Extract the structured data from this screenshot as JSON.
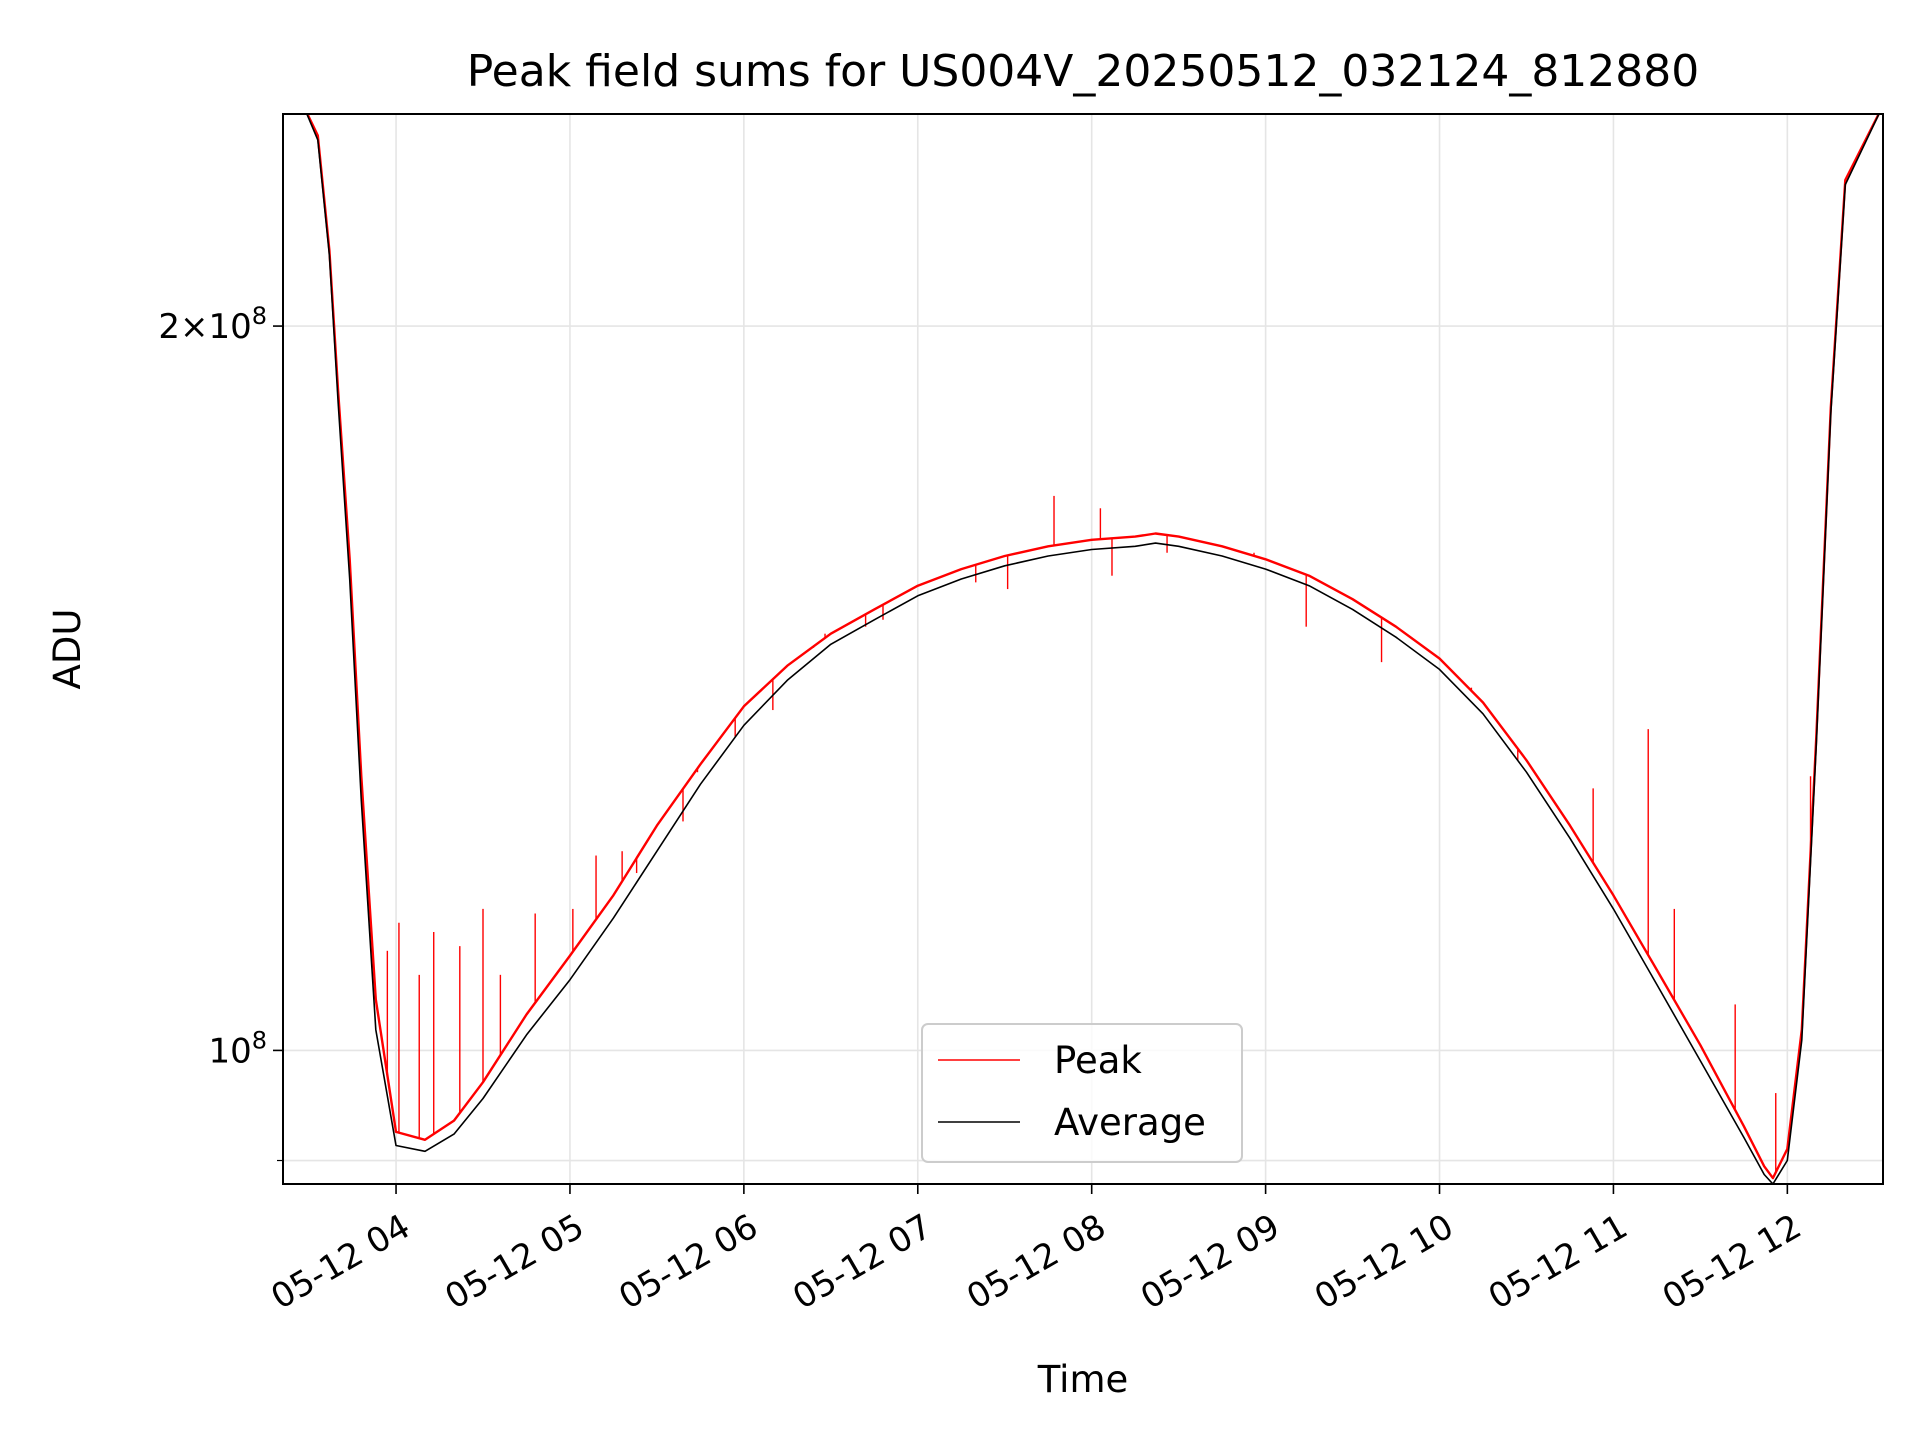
{
  "chart_data": {
    "type": "line",
    "title": "Peak field sums for US004V_20250512_032124_812880",
    "xlabel": "Time",
    "ylabel": "ADU",
    "y_scale": "log",
    "ylim": [
      88000000,
      245000000
    ],
    "xlim": [
      "2025-05-12 03:21",
      "2025-05-12 12:33"
    ],
    "grid": true,
    "legend_position": "lower center",
    "x_ticks": [
      {
        "value": "2025-05-12 04:00",
        "label": "05-12 04"
      },
      {
        "value": "2025-05-12 05:00",
        "label": "05-12 05"
      },
      {
        "value": "2025-05-12 06:00",
        "label": "05-12 06"
      },
      {
        "value": "2025-05-12 07:00",
        "label": "05-12 07"
      },
      {
        "value": "2025-05-12 08:00",
        "label": "05-12 08"
      },
      {
        "value": "2025-05-12 09:00",
        "label": "05-12 09"
      },
      {
        "value": "2025-05-12 10:00",
        "label": "05-12 10"
      },
      {
        "value": "2025-05-12 11:00",
        "label": "05-12 11"
      },
      {
        "value": "2025-05-12 12:00",
        "label": "05-12 12"
      }
    ],
    "y_ticks": [
      {
        "value": 200000000,
        "base": "2×10",
        "exp": "8"
      },
      {
        "value": 100000000,
        "base": "10",
        "exp": "8"
      }
    ],
    "y_minor_ticks": [
      90000000
    ],
    "series": [
      {
        "name": "Peak",
        "color": "#ff0000",
        "x": [
          "2025-05-12 03:21",
          "2025-05-12 03:28",
          "2025-05-12 03:33",
          "2025-05-12 03:37",
          "2025-05-12 03:40",
          "2025-05-12 03:44",
          "2025-05-12 03:48",
          "2025-05-12 03:53",
          "2025-05-12 04:00",
          "2025-05-12 04:10",
          "2025-05-12 04:20",
          "2025-05-12 04:30",
          "2025-05-12 04:45",
          "2025-05-12 05:00",
          "2025-05-12 05:15",
          "2025-05-12 05:30",
          "2025-05-12 05:45",
          "2025-05-12 06:00",
          "2025-05-12 06:15",
          "2025-05-12 06:30",
          "2025-05-12 06:45",
          "2025-05-12 07:00",
          "2025-05-12 07:15",
          "2025-05-12 07:30",
          "2025-05-12 07:45",
          "2025-05-12 08:00",
          "2025-05-12 08:15",
          "2025-05-12 08:22",
          "2025-05-12 08:30",
          "2025-05-12 08:45",
          "2025-05-12 09:00",
          "2025-05-12 09:15",
          "2025-05-12 09:30",
          "2025-05-12 09:45",
          "2025-05-12 10:00",
          "2025-05-12 10:15",
          "2025-05-12 10:30",
          "2025-05-12 10:45",
          "2025-05-12 11:00",
          "2025-05-12 11:15",
          "2025-05-12 11:30",
          "2025-05-12 11:45",
          "2025-05-12 11:52",
          "2025-05-12 11:55",
          "2025-05-12 12:00",
          "2025-05-12 12:05",
          "2025-05-12 12:10",
          "2025-05-12 12:15",
          "2025-05-12 12:20",
          "2025-05-12 12:33"
        ],
        "values": [
          247000000,
          247000000,
          240000000,
          215000000,
          188000000,
          160000000,
          130000000,
          105000000,
          92500000,
          91800000,
          93500000,
          97000000,
          103500000,
          109500000,
          116000000,
          124000000,
          131500000,
          139000000,
          144500000,
          149000000,
          152500000,
          156000000,
          158500000,
          160500000,
          162000000,
          163000000,
          163500000,
          164000000,
          163500000,
          162000000,
          160000000,
          157500000,
          154000000,
          150000000,
          145500000,
          139500000,
          132000000,
          124000000,
          116000000,
          108000000,
          100500000,
          93000000,
          89500000,
          88500000,
          91000000,
          102000000,
          135000000,
          185000000,
          230000000,
          247000000
        ]
      },
      {
        "name": "Average",
        "color": "#000000",
        "x": [
          "2025-05-12 03:21",
          "2025-05-12 03:28",
          "2025-05-12 03:33",
          "2025-05-12 03:37",
          "2025-05-12 03:40",
          "2025-05-12 03:44",
          "2025-05-12 03:48",
          "2025-05-12 03:53",
          "2025-05-12 04:00",
          "2025-05-12 04:10",
          "2025-05-12 04:20",
          "2025-05-12 04:30",
          "2025-05-12 04:45",
          "2025-05-12 05:00",
          "2025-05-12 05:15",
          "2025-05-12 05:30",
          "2025-05-12 05:45",
          "2025-05-12 06:00",
          "2025-05-12 06:15",
          "2025-05-12 06:30",
          "2025-05-12 06:45",
          "2025-05-12 07:00",
          "2025-05-12 07:15",
          "2025-05-12 07:30",
          "2025-05-12 07:45",
          "2025-05-12 08:00",
          "2025-05-12 08:15",
          "2025-05-12 08:22",
          "2025-05-12 08:30",
          "2025-05-12 08:45",
          "2025-05-12 09:00",
          "2025-05-12 09:15",
          "2025-05-12 09:30",
          "2025-05-12 09:45",
          "2025-05-12 10:00",
          "2025-05-12 10:15",
          "2025-05-12 10:30",
          "2025-05-12 10:45",
          "2025-05-12 11:00",
          "2025-05-12 11:15",
          "2025-05-12 11:30",
          "2025-05-12 11:45",
          "2025-05-12 11:52",
          "2025-05-12 11:55",
          "2025-05-12 12:00",
          "2025-05-12 12:05",
          "2025-05-12 12:10",
          "2025-05-12 12:15",
          "2025-05-12 12:20",
          "2025-05-12 12:33"
        ],
        "values": [
          247000000,
          247000000,
          239000000,
          214000000,
          186000000,
          157000000,
          127000000,
          102000000,
          91300000,
          90800000,
          92300000,
          95500000,
          101500000,
          107000000,
          113500000,
          121000000,
          129000000,
          136500000,
          142500000,
          147500000,
          151000000,
          154500000,
          157000000,
          159000000,
          160500000,
          161500000,
          162000000,
          162500000,
          162000000,
          160500000,
          158500000,
          156000000,
          152500000,
          148500000,
          144000000,
          138000000,
          130500000,
          122500000,
          114500000,
          106500000,
          99000000,
          92000000,
          88800000,
          88000000,
          90000000,
          101000000,
          134000000,
          184000000,
          229000000,
          247000000
        ]
      }
    ],
    "peak_spikes": [
      {
        "x": "2025-05-12 03:57",
        "value": 110000000
      },
      {
        "x": "2025-05-12 04:01",
        "value": 113000000
      },
      {
        "x": "2025-05-12 04:08",
        "value": 107500000
      },
      {
        "x": "2025-05-12 04:13",
        "value": 112000000
      },
      {
        "x": "2025-05-12 04:22",
        "value": 110500000
      },
      {
        "x": "2025-05-12 04:30",
        "value": 114500000
      },
      {
        "x": "2025-05-12 04:36",
        "value": 107500000
      },
      {
        "x": "2025-05-12 04:48",
        "value": 114000000
      },
      {
        "x": "2025-05-12 05:01",
        "value": 114500000
      },
      {
        "x": "2025-05-12 05:09",
        "value": 120500000
      },
      {
        "x": "2025-05-12 05:18",
        "value": 121000000
      },
      {
        "x": "2025-05-12 05:23",
        "value": 118500000
      },
      {
        "x": "2025-05-12 05:39",
        "value": 124500000
      },
      {
        "x": "2025-05-12 05:44",
        "value": 130500000
      },
      {
        "x": "2025-05-12 05:57",
        "value": 135000000
      },
      {
        "x": "2025-05-12 06:10",
        "value": 138500000
      },
      {
        "x": "2025-05-12 06:24",
        "value": 147000000
      },
      {
        "x": "2025-05-12 06:28",
        "value": 149000000
      },
      {
        "x": "2025-05-12 06:42",
        "value": 150000000
      },
      {
        "x": "2025-05-12 06:48",
        "value": 151000000
      },
      {
        "x": "2025-05-12 07:20",
        "value": 156500000
      },
      {
        "x": "2025-05-12 07:31",
        "value": 155500000
      },
      {
        "x": "2025-05-12 07:47",
        "value": 170000000
      },
      {
        "x": "2025-05-12 08:03",
        "value": 168000000
      },
      {
        "x": "2025-05-12 08:07",
        "value": 157500000
      },
      {
        "x": "2025-05-12 08:26",
        "value": 161000000
      },
      {
        "x": "2025-05-12 08:56",
        "value": 161000000
      },
      {
        "x": "2025-05-12 09:14",
        "value": 150000000
      },
      {
        "x": "2025-05-12 09:40",
        "value": 145000000
      },
      {
        "x": "2025-05-12 10:11",
        "value": 141500000
      },
      {
        "x": "2025-05-12 10:27",
        "value": 132000000
      },
      {
        "x": "2025-05-12 10:53",
        "value": 128500000
      },
      {
        "x": "2025-05-12 11:12",
        "value": 136000000
      },
      {
        "x": "2025-05-12 11:21",
        "value": 114500000
      },
      {
        "x": "2025-05-12 11:42",
        "value": 104500000
      },
      {
        "x": "2025-05-12 11:56",
        "value": 96000000
      },
      {
        "x": "2025-05-12 12:08",
        "value": 130000000
      }
    ]
  }
}
